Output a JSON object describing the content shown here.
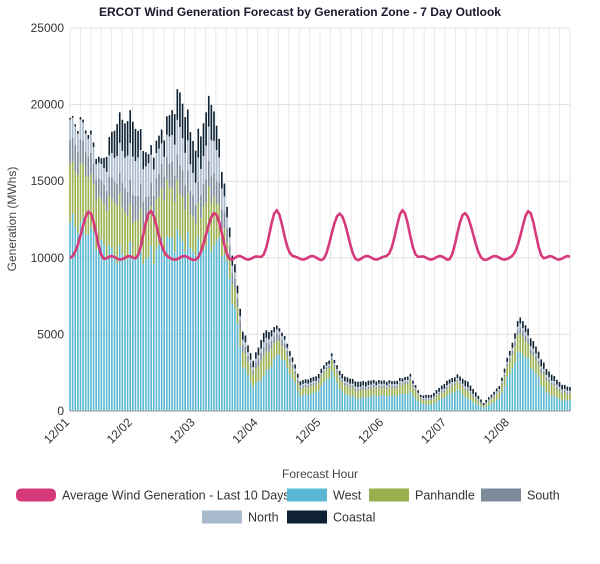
{
  "chart_data": {
    "type": "bar",
    "stacked": true,
    "title": "ERCOT Wind Generation Forecast by Generation Zone - 7 Day Outlook",
    "xlabel": "Forecast Hour",
    "ylabel": "Generation (MWhs)",
    "ylim": [
      0,
      25000
    ],
    "yticks": [
      0,
      5000,
      10000,
      15000,
      20000,
      25000
    ],
    "xtick_labels": [
      "12/01",
      "12/02",
      "12/03",
      "12/04",
      "12/05",
      "12/06",
      "12/07",
      "12/08"
    ],
    "hours_per_day": 24,
    "hours_total": 192,
    "grid": true,
    "legend_position": "bottom",
    "series_order": [
      "West",
      "Panhandle",
      "South",
      "North",
      "Coastal"
    ],
    "series": [
      {
        "name": "West",
        "color": "#5bb8d4",
        "knots": [
          [
            0,
            12300
          ],
          [
            6,
            12000
          ],
          [
            12,
            10800
          ],
          [
            18,
            10200
          ],
          [
            24,
            10300
          ],
          [
            30,
            10000
          ],
          [
            36,
            11000
          ],
          [
            42,
            11300
          ],
          [
            48,
            10500
          ],
          [
            54,
            11000
          ],
          [
            58,
            10800
          ],
          [
            60,
            9500
          ],
          [
            64,
            5500
          ],
          [
            66,
            3000
          ],
          [
            70,
            1600
          ],
          [
            74,
            2300
          ],
          [
            80,
            3800
          ],
          [
            84,
            2500
          ],
          [
            88,
            1000
          ],
          [
            94,
            1200
          ],
          [
            100,
            2500
          ],
          [
            104,
            1200
          ],
          [
            110,
            800
          ],
          [
            116,
            1000
          ],
          [
            124,
            1000
          ],
          [
            130,
            1200
          ],
          [
            134,
            500
          ],
          [
            138,
            400
          ],
          [
            144,
            1000
          ],
          [
            148,
            1400
          ],
          [
            152,
            800
          ],
          [
            158,
            200
          ],
          [
            164,
            800
          ],
          [
            168,
            2500
          ],
          [
            172,
            4000
          ],
          [
            176,
            3000
          ],
          [
            182,
            1200
          ],
          [
            188,
            700
          ],
          [
            191,
            700
          ]
        ]
      },
      {
        "name": "Panhandle",
        "color": "#9aaf4e",
        "knots": [
          [
            0,
            3600
          ],
          [
            6,
            3800
          ],
          [
            12,
            2700
          ],
          [
            18,
            3600
          ],
          [
            24,
            2300
          ],
          [
            30,
            2500
          ],
          [
            36,
            3600
          ],
          [
            42,
            3000
          ],
          [
            48,
            2000
          ],
          [
            54,
            3300
          ],
          [
            58,
            1800
          ],
          [
            60,
            1300
          ],
          [
            64,
            1200
          ],
          [
            66,
            1000
          ],
          [
            70,
            800
          ],
          [
            74,
            1300
          ],
          [
            80,
            900
          ],
          [
            84,
            700
          ],
          [
            88,
            450
          ],
          [
            94,
            500
          ],
          [
            100,
            700
          ],
          [
            104,
            600
          ],
          [
            110,
            500
          ],
          [
            116,
            500
          ],
          [
            124,
            500
          ],
          [
            130,
            700
          ],
          [
            134,
            250
          ],
          [
            138,
            300
          ],
          [
            144,
            400
          ],
          [
            148,
            500
          ],
          [
            152,
            450
          ],
          [
            158,
            100
          ],
          [
            164,
            450
          ],
          [
            168,
            800
          ],
          [
            172,
            1200
          ],
          [
            176,
            900
          ],
          [
            182,
            800
          ],
          [
            188,
            500
          ],
          [
            191,
            400
          ]
        ]
      },
      {
        "name": "South",
        "color": "#7c8a9a",
        "knots": [
          [
            0,
            1600
          ],
          [
            6,
            1500
          ],
          [
            12,
            1200
          ],
          [
            18,
            1400
          ],
          [
            24,
            1700
          ],
          [
            30,
            1500
          ],
          [
            36,
            1500
          ],
          [
            42,
            1800
          ],
          [
            48,
            1300
          ],
          [
            54,
            1700
          ],
          [
            58,
            1300
          ],
          [
            60,
            900
          ],
          [
            64,
            600
          ],
          [
            66,
            500
          ],
          [
            70,
            300
          ],
          [
            74,
            600
          ],
          [
            80,
            400
          ],
          [
            84,
            300
          ],
          [
            88,
            150
          ],
          [
            94,
            150
          ],
          [
            100,
            150
          ],
          [
            104,
            150
          ],
          [
            110,
            150
          ],
          [
            116,
            150
          ],
          [
            124,
            150
          ],
          [
            130,
            150
          ],
          [
            134,
            80
          ],
          [
            138,
            100
          ],
          [
            144,
            150
          ],
          [
            148,
            100
          ],
          [
            152,
            150
          ],
          [
            158,
            50
          ],
          [
            164,
            100
          ],
          [
            168,
            200
          ],
          [
            172,
            400
          ],
          [
            176,
            300
          ],
          [
            182,
            200
          ],
          [
            188,
            120
          ],
          [
            191,
            120
          ]
        ]
      },
      {
        "name": "North",
        "color": "#a8b9cb",
        "knots": [
          [
            0,
            1300
          ],
          [
            6,
            1200
          ],
          [
            12,
            1000
          ],
          [
            18,
            1800
          ],
          [
            24,
            2500
          ],
          [
            30,
            2000
          ],
          [
            36,
            1300
          ],
          [
            42,
            2400
          ],
          [
            48,
            1400
          ],
          [
            54,
            2400
          ],
          [
            58,
            1400
          ],
          [
            60,
            700
          ],
          [
            64,
            300
          ],
          [
            66,
            300
          ],
          [
            70,
            200
          ],
          [
            74,
            300
          ],
          [
            80,
            250
          ],
          [
            84,
            200
          ],
          [
            88,
            100
          ],
          [
            94,
            100
          ],
          [
            100,
            100
          ],
          [
            104,
            100
          ],
          [
            110,
            100
          ],
          [
            116,
            100
          ],
          [
            124,
            100
          ],
          [
            130,
            100
          ],
          [
            134,
            50
          ],
          [
            138,
            50
          ],
          [
            144,
            100
          ],
          [
            148,
            100
          ],
          [
            152,
            100
          ],
          [
            158,
            30
          ],
          [
            164,
            80
          ],
          [
            168,
            150
          ],
          [
            172,
            250
          ],
          [
            176,
            200
          ],
          [
            182,
            150
          ],
          [
            188,
            100
          ],
          [
            191,
            100
          ]
        ]
      },
      {
        "name": "Coastal",
        "color": "#0e2233",
        "knots": [
          [
            0,
            100
          ],
          [
            6,
            200
          ],
          [
            12,
            400
          ],
          [
            18,
            2000
          ],
          [
            24,
            2300
          ],
          [
            30,
            600
          ],
          [
            36,
            1000
          ],
          [
            42,
            2300
          ],
          [
            48,
            2000
          ],
          [
            54,
            2200
          ],
          [
            58,
            1000
          ],
          [
            60,
            700
          ],
          [
            64,
            500
          ],
          [
            66,
            500
          ],
          [
            70,
            400
          ],
          [
            74,
            600
          ],
          [
            80,
            200
          ],
          [
            84,
            300
          ],
          [
            88,
            250
          ],
          [
            94,
            300
          ],
          [
            100,
            200
          ],
          [
            104,
            300
          ],
          [
            110,
            350
          ],
          [
            116,
            250
          ],
          [
            124,
            200
          ],
          [
            130,
            200
          ],
          [
            134,
            150
          ],
          [
            138,
            200
          ],
          [
            144,
            300
          ],
          [
            148,
            250
          ],
          [
            152,
            400
          ],
          [
            158,
            150
          ],
          [
            164,
            200
          ],
          [
            168,
            300
          ],
          [
            172,
            400
          ],
          [
            176,
            500
          ],
          [
            182,
            400
          ],
          [
            188,
            300
          ],
          [
            191,
            250
          ]
        ]
      }
    ],
    "line": {
      "name": "Average Wind Generation - Last 10 Days",
      "color": "#d63a7a",
      "base": 10000,
      "peak_hour_of_day": 7,
      "peak_value": 13000,
      "valley_value": 9800
    }
  },
  "legend": [
    {
      "label": "Average Wind Generation - Last 10 Days",
      "color": "#d63a7a",
      "key": "line"
    },
    {
      "label": "West",
      "color": "#5bb8d4",
      "key": "West"
    },
    {
      "label": "Panhandle",
      "color": "#9aaf4e",
      "key": "Panhandle"
    },
    {
      "label": "South",
      "color": "#7c8a9a",
      "key": "South"
    },
    {
      "label": "North",
      "color": "#a8b9cb",
      "key": "North"
    },
    {
      "label": "Coastal",
      "color": "#0e2233",
      "key": "Coastal"
    }
  ]
}
